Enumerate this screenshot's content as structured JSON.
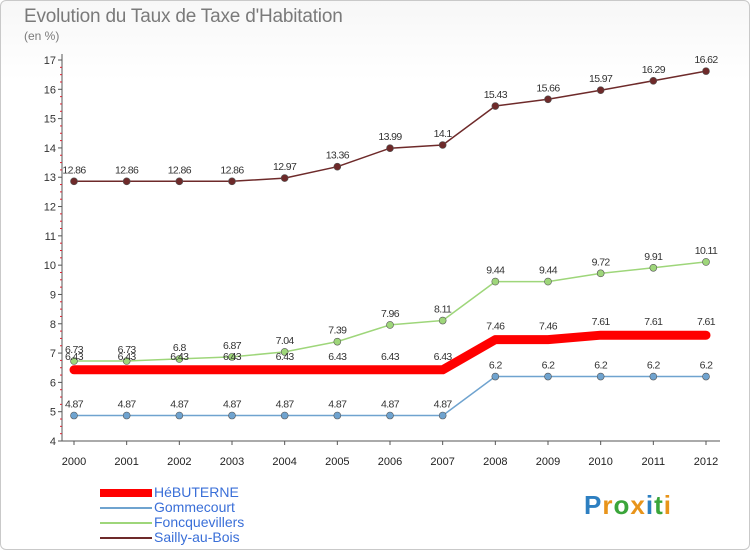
{
  "header": {
    "title": "Evolution du Taux de Taxe d'Habitation",
    "subtitle": "(en %)"
  },
  "brand": {
    "chars": [
      {
        "ch": "P",
        "color": "#2d7fc1"
      },
      {
        "ch": "r",
        "color": "#e8941a"
      },
      {
        "ch": "o",
        "color": "#3aa53a"
      },
      {
        "ch": "x",
        "color": "#e8941a"
      },
      {
        "ch": "i",
        "color": "#2d7fc1"
      },
      {
        "ch": "t",
        "color": "#3aa53a"
      },
      {
        "ch": "i",
        "color": "#e8941a"
      }
    ]
  },
  "chart_data": {
    "type": "line",
    "title": "Evolution du Taux de Taxe d'Habitation",
    "ylabel": "(en %)",
    "xlabel": "",
    "x": [
      "2000",
      "2001",
      "2002",
      "2003",
      "2004",
      "2005",
      "2006",
      "2007",
      "2008",
      "2009",
      "2010",
      "2011",
      "2012"
    ],
    "ylim": [
      4,
      17
    ],
    "yticks": [
      4,
      5,
      6,
      7,
      8,
      9,
      10,
      11,
      12,
      13,
      14,
      15,
      16,
      17
    ],
    "grid": false,
    "legend_position": "bottom-left",
    "series": [
      {
        "name": "Sailly-au-Bois",
        "color": "#6e2a2a",
        "values": [
          12.86,
          12.86,
          12.86,
          12.86,
          12.97,
          13.36,
          13.99,
          14.1,
          15.43,
          15.66,
          15.97,
          16.29,
          16.62
        ],
        "labels": [
          "12.86",
          "12.86",
          "12.86",
          "12.86",
          "12.97",
          "13.36",
          "13.99",
          "14.1",
          "15.43",
          "15.66",
          "15.97",
          "16.29",
          "16.62"
        ]
      },
      {
        "name": "Foncquevillers",
        "color": "#9ed67a",
        "values": [
          6.73,
          6.73,
          6.8,
          6.87,
          7.04,
          7.39,
          7.96,
          8.11,
          9.44,
          9.44,
          9.72,
          9.91,
          10.11
        ],
        "labels": [
          "6.73",
          "6.73",
          "6.8",
          "6.87",
          "7.04",
          "7.39",
          "7.96",
          "8.11",
          "9.44",
          "9.44",
          "9.72",
          "9.91",
          "10.11"
        ]
      },
      {
        "name": "HéBUTERNE",
        "color": "#ff0000",
        "values": [
          6.43,
          6.43,
          6.43,
          6.43,
          6.43,
          6.43,
          6.43,
          6.43,
          7.46,
          7.46,
          7.61,
          7.61,
          7.61
        ],
        "labels": [
          "6.43",
          "6.43",
          "6.43",
          "6.43",
          "6.43",
          "6.43",
          "6.43",
          "6.43",
          "7.46",
          "7.46",
          "7.61",
          "7.61",
          "7.61"
        ]
      },
      {
        "name": "Gommecourt",
        "color": "#6fa3cf",
        "values": [
          4.87,
          4.87,
          4.87,
          4.87,
          4.87,
          4.87,
          4.87,
          4.87,
          6.2,
          6.2,
          6.2,
          6.2,
          6.2
        ],
        "labels": [
          "4.87",
          "4.87",
          "4.87",
          "4.87",
          "4.87",
          "4.87",
          "4.87",
          "4.87",
          "6.2",
          "6.2",
          "6.2",
          "6.2",
          "6.2"
        ]
      }
    ],
    "legend_order": [
      "HéBUTERNE",
      "Gommecourt",
      "Foncquevillers",
      "Sailly-au-Bois"
    ]
  }
}
